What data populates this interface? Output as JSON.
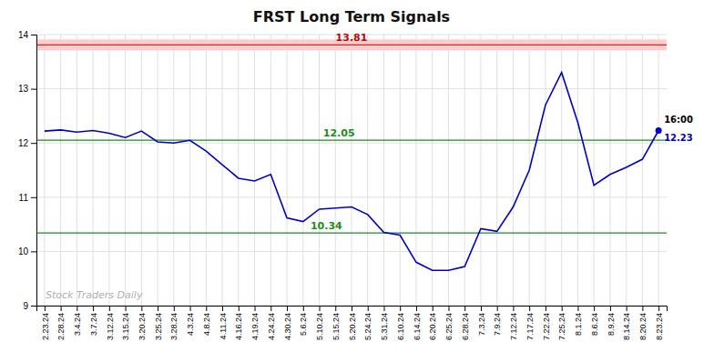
{
  "chart_data": {
    "type": "line",
    "title": "FRST Long Term Signals",
    "watermark": "Stock Traders Daily",
    "categories": [
      "2.23.24",
      "2.28.24",
      "3.4.24",
      "3.7.24",
      "3.12.24",
      "3.15.24",
      "3.20.24",
      "3.25.24",
      "3.28.24",
      "4.3.24",
      "4.8.24",
      "4.11.24",
      "4.16.24",
      "4.19.24",
      "4.24.24",
      "4.30.24",
      "5.6.24",
      "5.10.24",
      "5.15.24",
      "5.20.24",
      "5.24.24",
      "5.31.24",
      "6.10.24",
      "6.14.24",
      "6.20.24",
      "6.25.24",
      "6.28.24",
      "7.3.24",
      "7.9.24",
      "7.12.24",
      "7.17.24",
      "7.22.24",
      "7.25.24",
      "8.1.24",
      "8.6.24",
      "8.9.24",
      "8.14.24",
      "8.20.24",
      "8.23.24"
    ],
    "values": [
      12.22,
      12.24,
      12.2,
      12.23,
      12.18,
      12.1,
      12.22,
      12.02,
      12.0,
      12.05,
      11.85,
      11.6,
      11.35,
      11.3,
      11.42,
      10.62,
      10.55,
      10.78,
      10.8,
      10.82,
      10.68,
      10.35,
      10.3,
      9.8,
      9.65,
      9.65,
      9.72,
      10.42,
      10.37,
      10.82,
      11.5,
      12.7,
      13.3,
      12.38,
      11.22,
      11.42,
      11.55,
      11.7,
      12.23
    ],
    "color": "#0000cc",
    "reference_lines": [
      {
        "value": 13.81,
        "label": "13.81",
        "color": "#cc0000"
      },
      {
        "value": 12.05,
        "label": "12.05",
        "color": "#228B22"
      },
      {
        "value": 10.34,
        "label": "10.34",
        "color": "#228B22"
      }
    ],
    "band": {
      "values": [
        13.71,
        13.91
      ],
      "color": "#ffcccc"
    },
    "annotations": [
      {
        "text": "16:00"
      },
      {
        "text": "12.23",
        "value": 12.23
      }
    ],
    "ylim": [
      9,
      14
    ],
    "yticks": [
      9,
      10,
      11,
      12,
      13,
      14
    ],
    "grid": true
  }
}
